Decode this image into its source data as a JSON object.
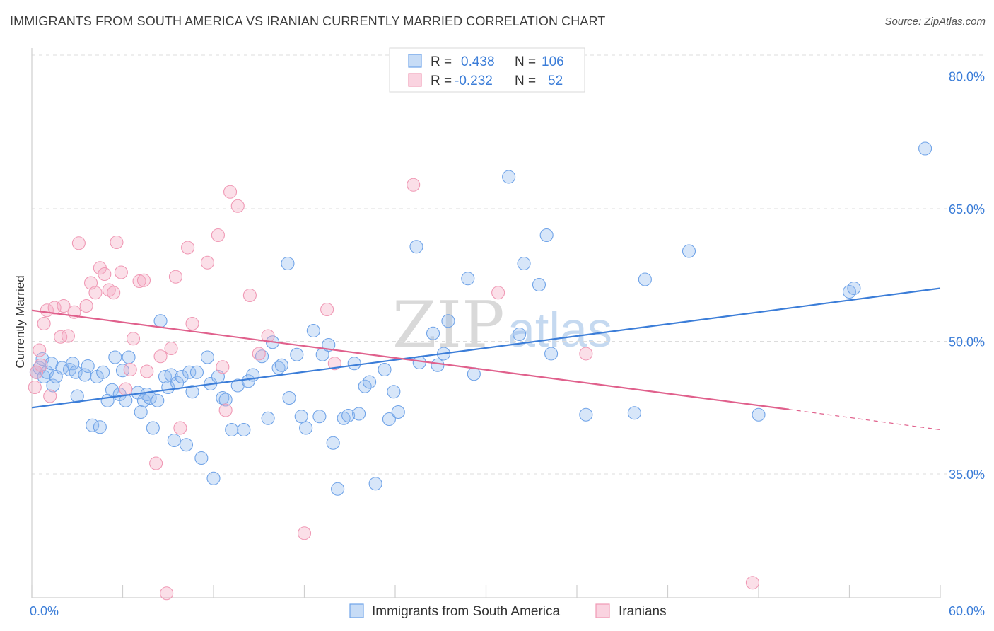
{
  "header": {
    "title": "IMMIGRANTS FROM SOUTH AMERICA VS IRANIAN CURRENTLY MARRIED CORRELATION CHART",
    "source": "Source: ZipAtlas.com"
  },
  "watermark": {
    "zip": "ZIP",
    "atlas": "atlas"
  },
  "legend": {
    "rows": [
      {
        "r_label": "R =",
        "r_value": "0.438",
        "n_label": "N =",
        "n_value": "106",
        "color": "#6fa3e8"
      },
      {
        "r_label": "R =",
        "r_value": "-0.232",
        "n_label": "N =",
        "n_value": "52",
        "color": "#f099b5"
      }
    ]
  },
  "bottom_legend": {
    "items": [
      {
        "label": "Immigrants from South America",
        "color": "#6fa3e8"
      },
      {
        "label": "Iranians",
        "color": "#f099b5"
      }
    ]
  },
  "chart_data": {
    "type": "scatter",
    "title": "IMMIGRANTS FROM SOUTH AMERICA VS IRANIAN CURRENTLY MARRIED CORRELATION CHART",
    "xlabel": "",
    "ylabel": "Currently Married",
    "xlim": [
      0,
      60
    ],
    "ylim": [
      21,
      83
    ],
    "x_tick_labels": [
      "0.0%",
      "60.0%"
    ],
    "y_ticks": [
      35,
      50,
      65,
      80
    ],
    "y_tick_labels": [
      "35.0%",
      "50.0%",
      "65.0%",
      "80.0%"
    ],
    "grid": true,
    "legend_position": "top-center",
    "series": [
      {
        "name": "Immigrants from South America",
        "color": "#6fa3e8",
        "stroke": "#3b7dd8",
        "trend": {
          "x": [
            0,
            60
          ],
          "y": [
            42.5,
            56.0
          ]
        },
        "points": [
          [
            0.3,
            46.5
          ],
          [
            0.5,
            47.0
          ],
          [
            0.7,
            48.0
          ],
          [
            0.8,
            46.0
          ],
          [
            1.0,
            46.5
          ],
          [
            1.3,
            47.5
          ],
          [
            1.4,
            45.0
          ],
          [
            1.6,
            46.0
          ],
          [
            2.0,
            47.0
          ],
          [
            2.5,
            46.8
          ],
          [
            2.7,
            47.5
          ],
          [
            2.9,
            46.5
          ],
          [
            3.0,
            43.8
          ],
          [
            3.5,
            46.2
          ],
          [
            3.7,
            47.2
          ],
          [
            4.0,
            40.5
          ],
          [
            4.3,
            46.0
          ],
          [
            4.5,
            40.3
          ],
          [
            4.7,
            46.5
          ],
          [
            5.0,
            43.3
          ],
          [
            5.3,
            44.5
          ],
          [
            5.5,
            48.2
          ],
          [
            5.8,
            44.0
          ],
          [
            6.0,
            46.7
          ],
          [
            6.2,
            43.3
          ],
          [
            6.4,
            48.2
          ],
          [
            7.0,
            44.2
          ],
          [
            7.2,
            42.0
          ],
          [
            7.4,
            43.3
          ],
          [
            7.6,
            44.0
          ],
          [
            7.8,
            43.6
          ],
          [
            8.0,
            40.2
          ],
          [
            8.3,
            43.3
          ],
          [
            8.5,
            52.3
          ],
          [
            8.8,
            46.0
          ],
          [
            9.0,
            44.8
          ],
          [
            9.2,
            46.2
          ],
          [
            9.4,
            38.8
          ],
          [
            9.6,
            45.3
          ],
          [
            9.9,
            46.0
          ],
          [
            10.2,
            38.3
          ],
          [
            10.4,
            46.5
          ],
          [
            10.6,
            44.3
          ],
          [
            10.9,
            46.5
          ],
          [
            11.2,
            36.8
          ],
          [
            11.6,
            48.2
          ],
          [
            11.8,
            45.2
          ],
          [
            12.0,
            34.5
          ],
          [
            12.3,
            46.0
          ],
          [
            12.6,
            43.6
          ],
          [
            12.8,
            43.4
          ],
          [
            13.2,
            40.0
          ],
          [
            13.6,
            45.0
          ],
          [
            14.0,
            40.0
          ],
          [
            14.3,
            45.5
          ],
          [
            14.6,
            46.2
          ],
          [
            15.2,
            48.3
          ],
          [
            15.6,
            41.3
          ],
          [
            15.9,
            49.9
          ],
          [
            16.3,
            47.0
          ],
          [
            16.5,
            47.3
          ],
          [
            16.9,
            58.8
          ],
          [
            17.0,
            43.6
          ],
          [
            17.5,
            48.5
          ],
          [
            17.8,
            41.5
          ],
          [
            18.1,
            40.2
          ],
          [
            18.6,
            51.2
          ],
          [
            19.0,
            41.5
          ],
          [
            19.2,
            48.5
          ],
          [
            19.6,
            49.6
          ],
          [
            19.9,
            38.5
          ],
          [
            20.2,
            33.3
          ],
          [
            20.6,
            41.3
          ],
          [
            20.9,
            41.6
          ],
          [
            21.3,
            47.5
          ],
          [
            21.6,
            41.8
          ],
          [
            22.0,
            44.9
          ],
          [
            22.3,
            45.4
          ],
          [
            22.7,
            33.9
          ],
          [
            23.3,
            46.8
          ],
          [
            23.6,
            41.2
          ],
          [
            23.9,
            44.3
          ],
          [
            24.2,
            42.0
          ],
          [
            25.4,
            60.7
          ],
          [
            25.6,
            47.6
          ],
          [
            26.5,
            50.9
          ],
          [
            26.8,
            47.3
          ],
          [
            27.2,
            48.6
          ],
          [
            27.5,
            52.3
          ],
          [
            28.8,
            57.1
          ],
          [
            29.2,
            46.3
          ],
          [
            31.5,
            68.6
          ],
          [
            32.2,
            50.8
          ],
          [
            32.5,
            58.8
          ],
          [
            33.5,
            56.4
          ],
          [
            34.0,
            62.0
          ],
          [
            34.3,
            48.6
          ],
          [
            36.6,
            41.7
          ],
          [
            39.8,
            41.9
          ],
          [
            40.5,
            57.0
          ],
          [
            43.4,
            60.2
          ],
          [
            48.0,
            41.7
          ],
          [
            54.0,
            55.6
          ],
          [
            54.3,
            56.0
          ],
          [
            59.0,
            71.8
          ]
        ]
      },
      {
        "name": "Iranians",
        "color": "#f099b5",
        "stroke": "#e0608c",
        "trend": {
          "x": [
            0,
            50
          ],
          "y": [
            53.5,
            42.3
          ]
        },
        "trend_dashed": {
          "x": [
            50,
            60
          ],
          "y": [
            42.3,
            40.0
          ]
        },
        "points": [
          [
            0.2,
            44.8
          ],
          [
            0.5,
            49.0
          ],
          [
            0.8,
            52.0
          ],
          [
            1.0,
            53.5
          ],
          [
            1.2,
            43.8
          ],
          [
            1.5,
            53.8
          ],
          [
            1.9,
            50.5
          ],
          [
            2.1,
            54.0
          ],
          [
            2.4,
            50.6
          ],
          [
            2.8,
            53.3
          ],
          [
            3.1,
            61.1
          ],
          [
            3.6,
            54.0
          ],
          [
            3.9,
            56.6
          ],
          [
            4.2,
            55.5
          ],
          [
            4.5,
            58.3
          ],
          [
            4.8,
            57.6
          ],
          [
            5.1,
            55.8
          ],
          [
            5.4,
            55.5
          ],
          [
            5.6,
            61.2
          ],
          [
            5.9,
            57.8
          ],
          [
            6.2,
            44.6
          ],
          [
            6.5,
            46.8
          ],
          [
            6.7,
            50.3
          ],
          [
            7.1,
            56.8
          ],
          [
            7.4,
            56.9
          ],
          [
            7.6,
            46.6
          ],
          [
            8.2,
            36.2
          ],
          [
            8.5,
            48.3
          ],
          [
            8.9,
            21.5
          ],
          [
            9.2,
            49.2
          ],
          [
            9.5,
            57.3
          ],
          [
            9.8,
            40.2
          ],
          [
            10.3,
            60.6
          ],
          [
            10.6,
            52.0
          ],
          [
            11.6,
            58.9
          ],
          [
            12.3,
            62.0
          ],
          [
            12.6,
            47.1
          ],
          [
            12.8,
            42.2
          ],
          [
            13.1,
            66.9
          ],
          [
            13.6,
            65.3
          ],
          [
            14.4,
            55.2
          ],
          [
            15.0,
            48.6
          ],
          [
            15.6,
            50.6
          ],
          [
            18.0,
            28.3
          ],
          [
            19.5,
            53.6
          ],
          [
            20.0,
            47.5
          ],
          [
            25.2,
            67.7
          ],
          [
            30.8,
            55.5
          ],
          [
            36.6,
            48.6
          ],
          [
            47.6,
            22.7
          ],
          [
            0.3,
            46.5
          ],
          [
            0.6,
            47.3
          ]
        ]
      }
    ]
  }
}
